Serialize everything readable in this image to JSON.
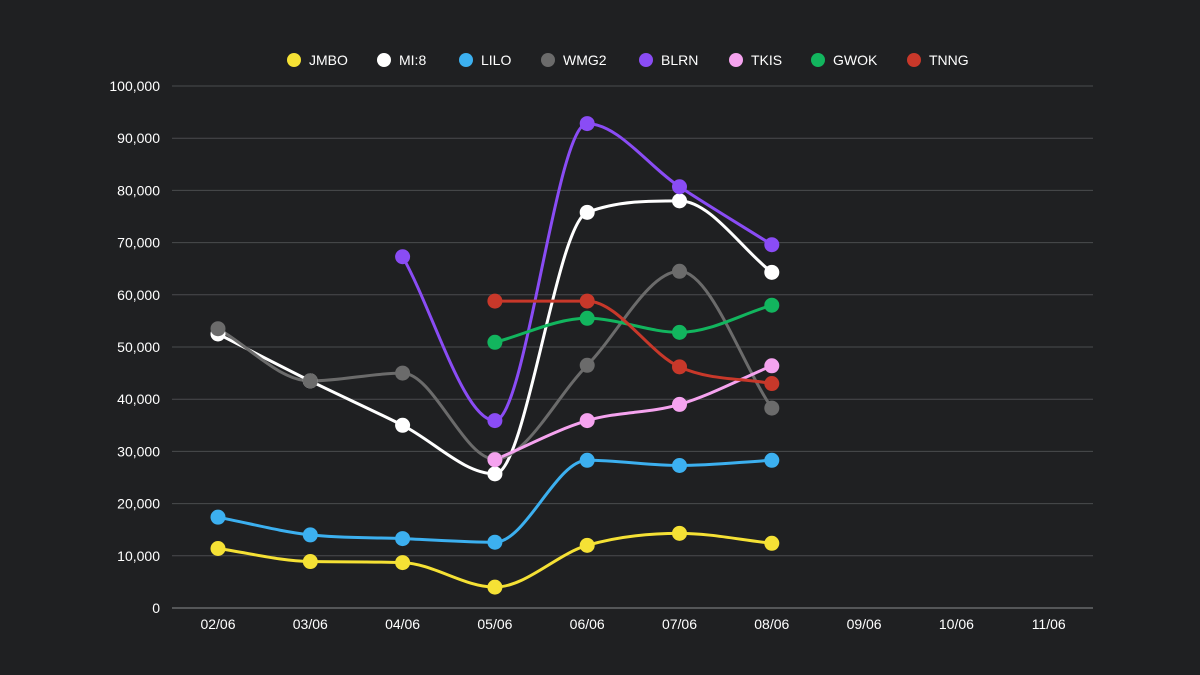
{
  "chart_data": {
    "type": "line",
    "title": "",
    "xlabel": "",
    "ylabel": "",
    "categories": [
      "02/06",
      "03/06",
      "04/06",
      "05/06",
      "06/06",
      "07/06",
      "08/06",
      "09/06",
      "10/06",
      "11/06"
    ],
    "ylim": [
      0,
      100000
    ],
    "yticks": [
      0,
      10000,
      20000,
      30000,
      40000,
      50000,
      60000,
      70000,
      80000,
      90000,
      100000
    ],
    "ytick_labels": [
      "0",
      "10,000",
      "20,000",
      "30,000",
      "40,000",
      "50,000",
      "60,000",
      "70,000",
      "80,000",
      "90,000",
      "100,000"
    ],
    "grid": true,
    "legend_position": "top-center",
    "background": "#1f2022",
    "series": [
      {
        "name": "JMBO",
        "color": "#f5e135",
        "values": [
          11400,
          8900,
          8700,
          4000,
          12000,
          14300,
          12400,
          null,
          null,
          null
        ]
      },
      {
        "name": "MI:8",
        "color": "#ffffff",
        "values": [
          52500,
          43500,
          35000,
          25700,
          75800,
          78000,
          64300,
          null,
          null,
          null
        ]
      },
      {
        "name": "LILO",
        "color": "#3cb0f0",
        "values": [
          17400,
          14000,
          13300,
          12600,
          28300,
          27300,
          28300,
          null,
          null,
          null
        ]
      },
      {
        "name": "WMG2",
        "color": "#6b6b6b",
        "values": [
          53500,
          43500,
          45000,
          28500,
          46500,
          64500,
          38300,
          null,
          null,
          null
        ]
      },
      {
        "name": "BLRN",
        "color": "#8a4cf5",
        "values": [
          null,
          null,
          67300,
          35900,
          92800,
          80700,
          69600,
          null,
          null,
          null
        ]
      },
      {
        "name": "TKIS",
        "color": "#f5a3ef",
        "values": [
          null,
          null,
          null,
          28400,
          35900,
          39000,
          46400,
          null,
          null,
          null
        ]
      },
      {
        "name": "GWOK",
        "color": "#12b55e",
        "values": [
          null,
          null,
          null,
          50900,
          55500,
          52800,
          58000,
          null,
          null,
          null
        ]
      },
      {
        "name": "TNNG",
        "color": "#c8382a",
        "values": [
          null,
          null,
          null,
          58800,
          58800,
          46200,
          43000,
          null,
          null,
          null
        ]
      }
    ]
  }
}
